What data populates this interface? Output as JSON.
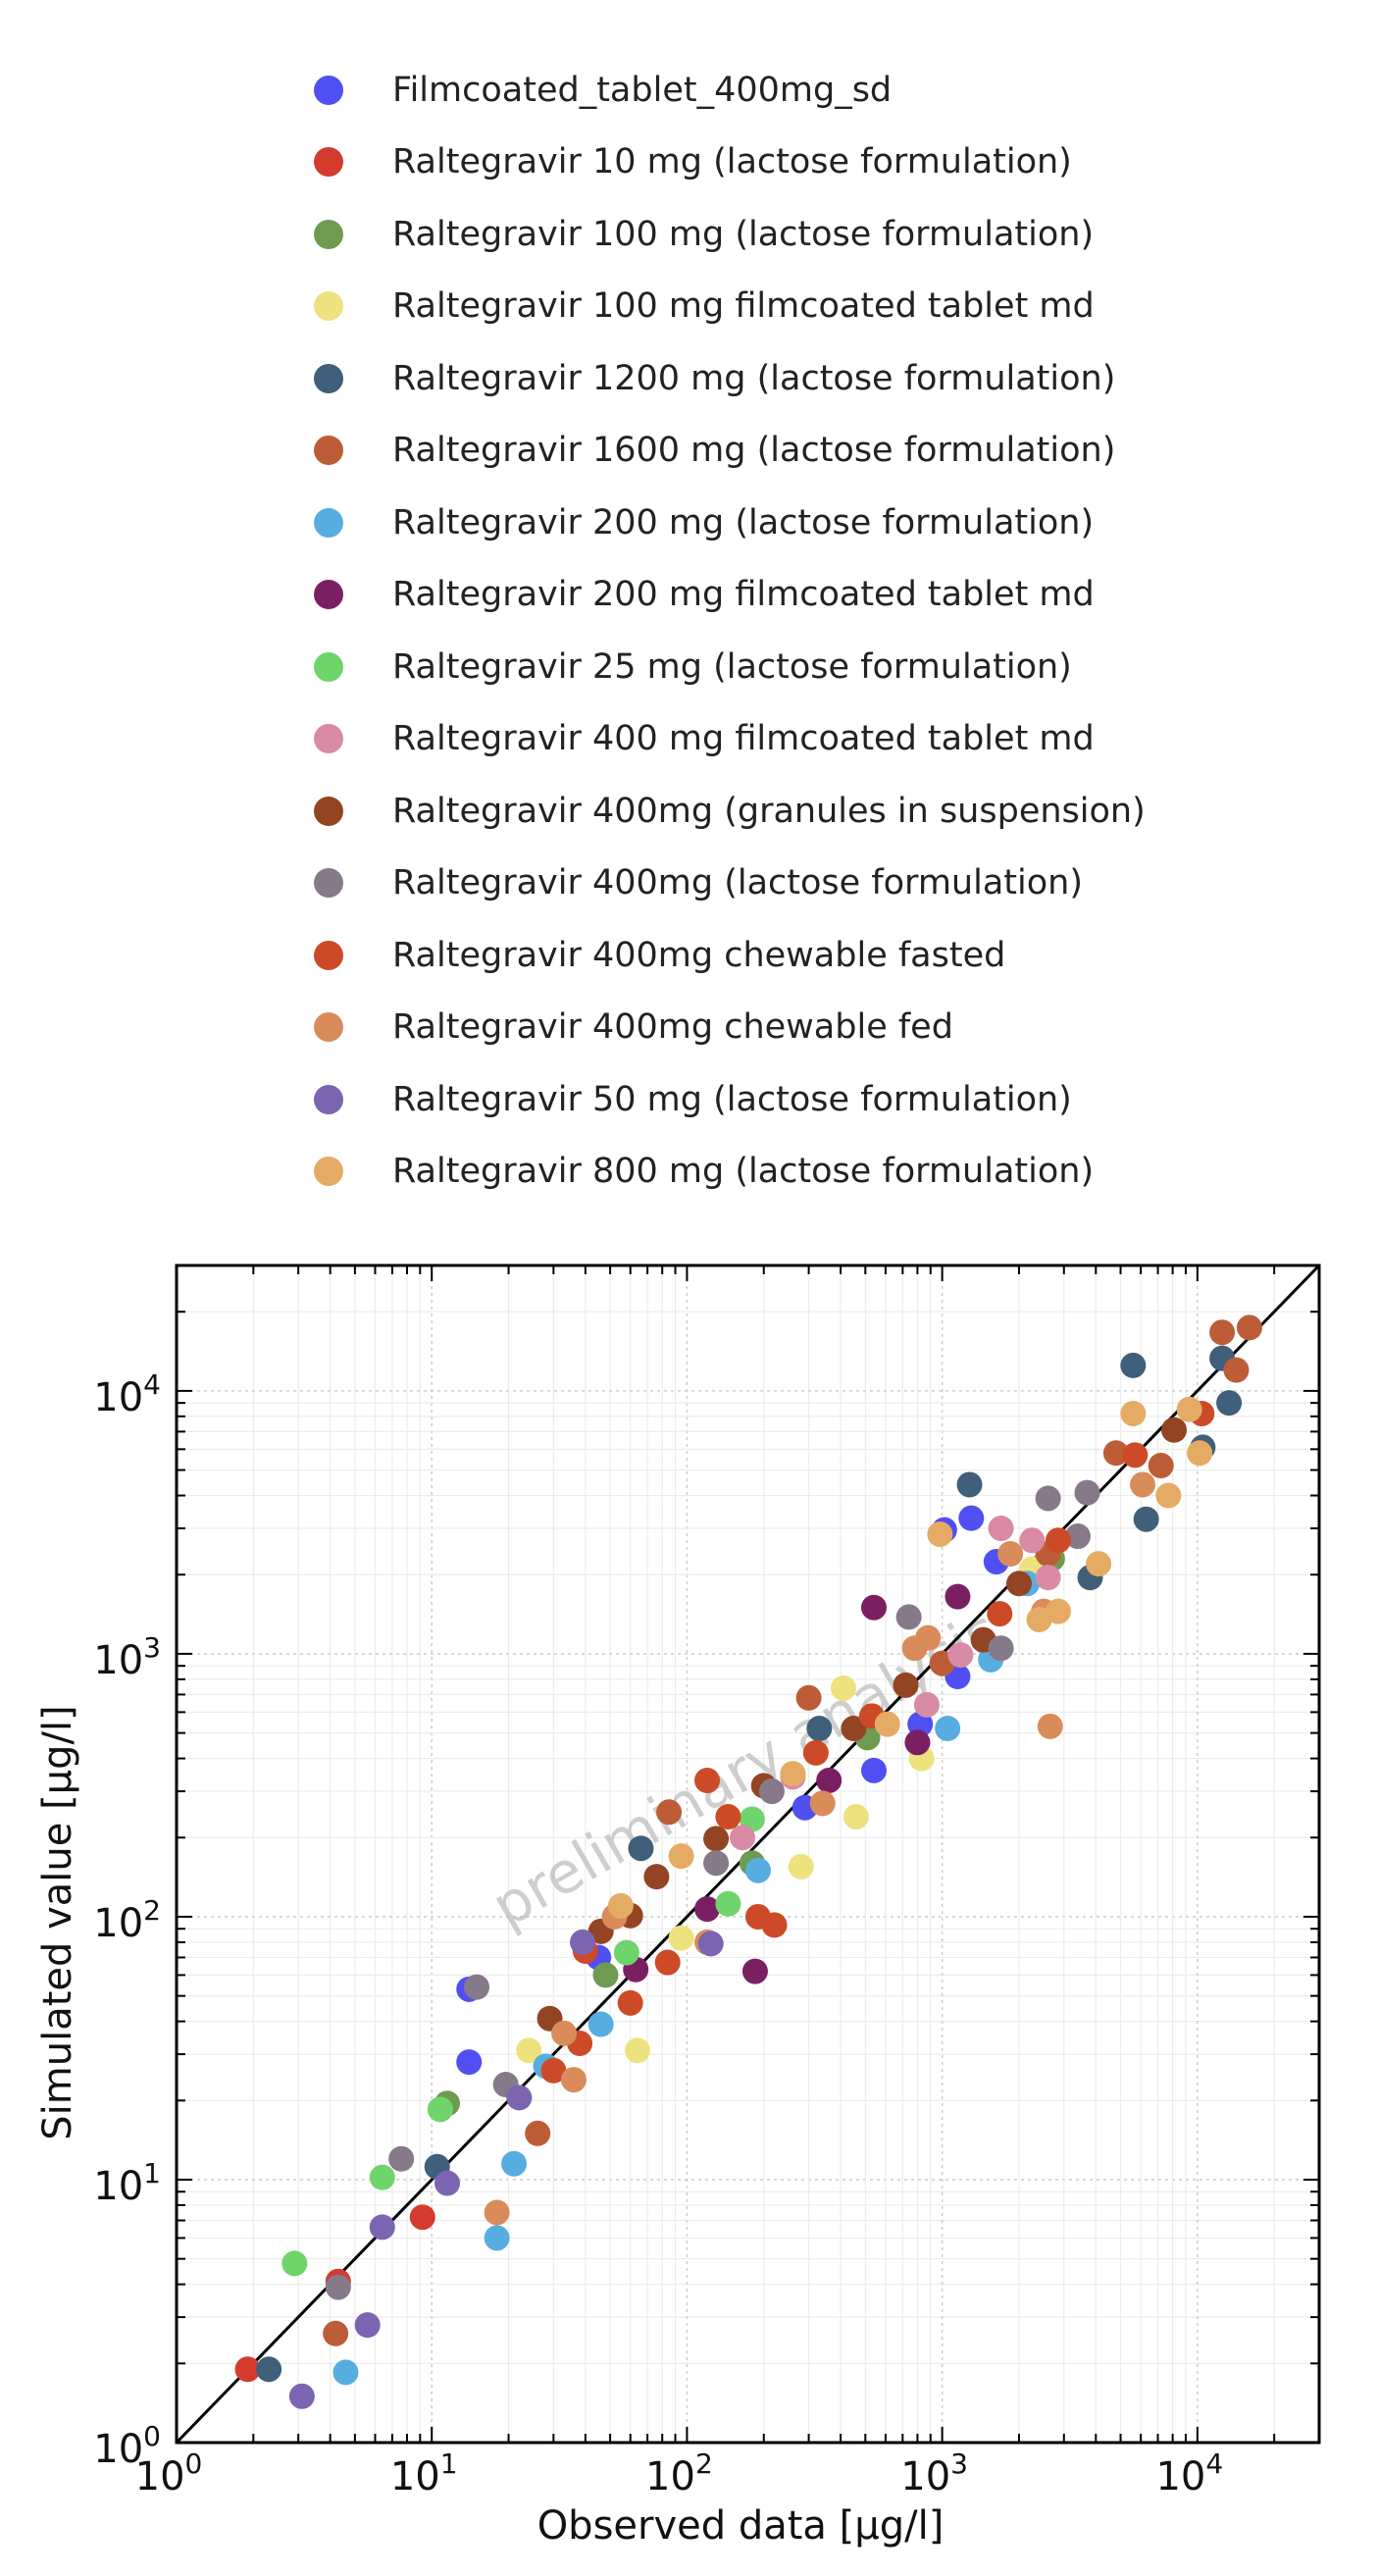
{
  "chart_data": {
    "type": "scatter",
    "xlabel": "Observed data [µg/l]",
    "ylabel": "Simulated value [µg/l]",
    "x_scale": "log",
    "y_scale": "log",
    "xlim": [
      1,
      30000
    ],
    "ylim": [
      1,
      30000
    ],
    "x_ticks": [
      1,
      10,
      100,
      1000,
      10000
    ],
    "y_ticks": [
      1,
      10,
      100,
      1000,
      10000
    ],
    "grid": true,
    "identity_line": true,
    "legend_position": "top",
    "watermark": "preliminary analysis",
    "series": [
      {
        "name": "Filmcoated_tablet_400mg_sd",
        "color": "#4f4ff2",
        "points": [
          [
            14,
            53
          ],
          [
            14,
            28
          ],
          [
            45,
            70
          ],
          [
            290,
            260
          ],
          [
            540,
            360
          ],
          [
            820,
            540
          ],
          [
            1020,
            2960
          ],
          [
            1300,
            3280
          ],
          [
            1630,
            2240
          ],
          [
            1150,
            820
          ]
        ]
      },
      {
        "name": "Raltegravir 10 mg (lactose formulation)",
        "color": "#d43a2e",
        "points": [
          [
            1.9,
            1.9
          ],
          [
            4.3,
            4.1
          ],
          [
            9.2,
            7.2
          ]
        ]
      },
      {
        "name": "Raltegravir 100 mg (lactose formulation)",
        "color": "#6f9a52",
        "points": [
          [
            11.5,
            19.5
          ],
          [
            48,
            60
          ],
          [
            180,
            160
          ],
          [
            510,
            480
          ],
          [
            2700,
            2300
          ]
        ]
      },
      {
        "name": "Raltegravir 100 mg filmcoated tablet md",
        "color": "#ede27e",
        "points": [
          [
            24,
            31
          ],
          [
            64,
            31
          ],
          [
            95,
            83
          ],
          [
            280,
            155
          ],
          [
            410,
            740
          ],
          [
            460,
            240
          ],
          [
            830,
            400
          ],
          [
            2250,
            2100
          ]
        ]
      },
      {
        "name": "Raltegravir 1200 mg (lactose formulation)",
        "color": "#3f5f7a",
        "points": [
          [
            2.3,
            1.9
          ],
          [
            10.5,
            11.2
          ],
          [
            66,
            182
          ],
          [
            330,
            520
          ],
          [
            1280,
            4400
          ],
          [
            3800,
            1950
          ],
          [
            5600,
            12500
          ],
          [
            6300,
            3250
          ],
          [
            10500,
            6100
          ],
          [
            12500,
            13300
          ],
          [
            13300,
            9000
          ]
        ]
      },
      {
        "name": "Raltegravir 1600 mg (lactose formulation)",
        "color": "#bd5d38",
        "points": [
          [
            4.2,
            2.6
          ],
          [
            26,
            15
          ],
          [
            85,
            250
          ],
          [
            300,
            680
          ],
          [
            1000,
            920
          ],
          [
            2600,
            2400
          ],
          [
            4800,
            5800
          ],
          [
            7200,
            5200
          ],
          [
            12500,
            16700
          ],
          [
            14200,
            12000
          ],
          [
            16000,
            17400
          ]
        ]
      },
      {
        "name": "Raltegravir 200 mg (lactose formulation)",
        "color": "#57ade0",
        "points": [
          [
            4.6,
            1.85
          ],
          [
            18,
            6
          ],
          [
            21,
            11.5
          ],
          [
            28,
            27
          ],
          [
            46,
            39
          ],
          [
            190,
            150
          ],
          [
            1050,
            520
          ],
          [
            1550,
            950
          ],
          [
            2150,
            1850
          ]
        ]
      },
      {
        "name": "Raltegravir 200 mg filmcoated tablet md",
        "color": "#7b1f63",
        "points": [
          [
            63,
            63
          ],
          [
            120,
            107
          ],
          [
            185,
            62
          ],
          [
            360,
            330
          ],
          [
            540,
            1500
          ],
          [
            800,
            460
          ],
          [
            1150,
            1650
          ]
        ]
      },
      {
        "name": "Raltegravir 25 mg (lactose formulation)",
        "color": "#6fd46b",
        "points": [
          [
            2.9,
            4.8
          ],
          [
            6.4,
            10.2
          ],
          [
            10.8,
            18.5
          ],
          [
            58,
            73
          ],
          [
            145,
            112
          ],
          [
            180,
            235
          ]
        ]
      },
      {
        "name": "Raltegravir 400 mg filmcoated tablet md",
        "color": "#d98aa5",
        "points": [
          [
            165,
            200
          ],
          [
            260,
            340
          ],
          [
            870,
            640
          ],
          [
            1180,
            990
          ],
          [
            1700,
            3000
          ],
          [
            2250,
            2700
          ],
          [
            2600,
            1950
          ]
        ]
      },
      {
        "name": "Raltegravir 400mg (granules in suspension)",
        "color": "#934423",
        "points": [
          [
            29,
            41
          ],
          [
            46,
            88
          ],
          [
            60,
            101
          ],
          [
            76,
            142
          ],
          [
            130,
            198
          ],
          [
            200,
            315
          ],
          [
            450,
            520
          ],
          [
            720,
            760
          ],
          [
            1450,
            1130
          ],
          [
            2000,
            1850
          ],
          [
            8100,
            7100
          ]
        ]
      },
      {
        "name": "Raltegravir 400mg (lactose formulation)",
        "color": "#867989",
        "points": [
          [
            4.3,
            3.9
          ],
          [
            7.6,
            12
          ],
          [
            15,
            54
          ],
          [
            19.5,
            23
          ],
          [
            130,
            160
          ],
          [
            215,
            300
          ],
          [
            740,
            1380
          ],
          [
            1700,
            1050
          ],
          [
            2600,
            3900
          ],
          [
            3400,
            2800
          ],
          [
            3700,
            4100
          ]
        ]
      },
      {
        "name": "Raltegravir 400mg chewable fasted",
        "color": "#cd4a29",
        "points": [
          [
            30,
            26
          ],
          [
            38,
            33
          ],
          [
            40,
            74
          ],
          [
            60,
            47
          ],
          [
            84,
            67
          ],
          [
            120,
            330
          ],
          [
            145,
            240
          ],
          [
            190,
            100
          ],
          [
            220,
            93
          ],
          [
            320,
            420
          ],
          [
            530,
            580
          ],
          [
            1680,
            1420
          ],
          [
            2850,
            2700
          ],
          [
            5700,
            5700
          ],
          [
            10400,
            8200
          ]
        ]
      },
      {
        "name": "Raltegravir 400mg chewable fed",
        "color": "#d98c5a",
        "points": [
          [
            18,
            7.5
          ],
          [
            33,
            36
          ],
          [
            36,
            24
          ],
          [
            52,
            100
          ],
          [
            120,
            80
          ],
          [
            340,
            270
          ],
          [
            780,
            1050
          ],
          [
            880,
            1150
          ],
          [
            1850,
            2400
          ],
          [
            2500,
            1450
          ],
          [
            2650,
            530
          ],
          [
            6100,
            4400
          ]
        ]
      },
      {
        "name": "Raltegravir 50 mg (lactose formulation)",
        "color": "#7b64b0",
        "points": [
          [
            3.1,
            1.5
          ],
          [
            5.6,
            2.8
          ],
          [
            6.4,
            6.6
          ],
          [
            11.5,
            9.7
          ],
          [
            22,
            20.5
          ],
          [
            39,
            80
          ],
          [
            124,
            79
          ]
        ]
      },
      {
        "name": "Raltegravir 800 mg (lactose formulation)",
        "color": "#e5ab65",
        "points": [
          [
            55,
            110
          ],
          [
            95,
            170
          ],
          [
            260,
            350
          ],
          [
            610,
            540
          ],
          [
            980,
            2850
          ],
          [
            2400,
            1350
          ],
          [
            2850,
            1450
          ],
          [
            4100,
            2200
          ],
          [
            5600,
            8200
          ],
          [
            7700,
            4000
          ],
          [
            9300,
            8500
          ],
          [
            10200,
            5800
          ]
        ]
      }
    ]
  }
}
